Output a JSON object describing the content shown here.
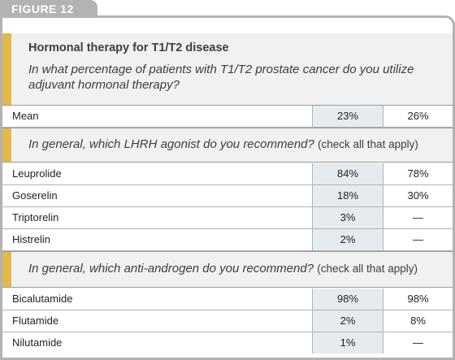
{
  "figure_label": "FIGURE 12",
  "title": "Hormonal therapy for T1/T2 disease",
  "sections": [
    {
      "question": "In what percentage of patients with T1/T2 prostate cancer do you utilize adjuvant hormonal therapy?",
      "note": "",
      "rows": [
        {
          "label": "Mean",
          "c1": "23%",
          "c2": "26%"
        }
      ]
    },
    {
      "question": "In general, which LHRH agonist do you recommend?",
      "note": "(check all that apply)",
      "rows": [
        {
          "label": "Leuprolide",
          "c1": "84%",
          "c2": "78%"
        },
        {
          "label": "Goserelin",
          "c1": "18%",
          "c2": "30%"
        },
        {
          "label": "Triptorelin",
          "c1": "3%",
          "c2": "—"
        },
        {
          "label": "Histrelin",
          "c1": "2%",
          "c2": "—"
        }
      ]
    },
    {
      "question": "In general, which anti-androgen do you recommend?",
      "note": "(check all that apply)",
      "rows": [
        {
          "label": "Bicalutamide",
          "c1": "98%",
          "c2": "98%"
        },
        {
          "label": "Flutamide",
          "c1": "2%",
          "c2": "8%"
        },
        {
          "label": "Nilutamide",
          "c1": "1%",
          "c2": "—"
        }
      ]
    }
  ],
  "colors": {
    "accent_gold": "#e4b94a",
    "tab_gray": "#b3b3b3",
    "band_bg": "#f1f1f1",
    "column_highlight": "#e6ebef"
  }
}
